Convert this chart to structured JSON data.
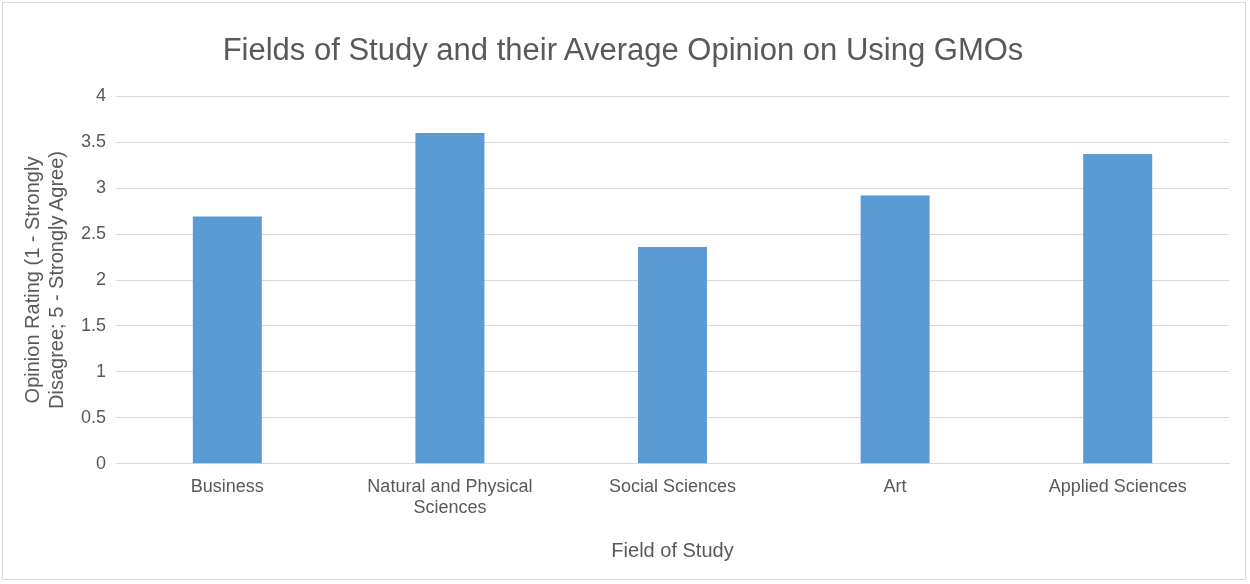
{
  "chart_data": {
    "type": "bar",
    "title": "Fields of Study and their Average Opinion on Using GMOs",
    "xlabel": "Field of Study",
    "ylabel": "Opinion Rating (1 - Strongly Disagree; 5 - Strongly Agree)",
    "categories": [
      "Business",
      "Natural and Physical Sciences",
      "Social Sciences",
      "Art",
      "Applied Sciences"
    ],
    "values": [
      2.69,
      3.6,
      2.36,
      2.92,
      3.37
    ],
    "color": "#5b9bd5",
    "ylim": [
      0,
      4
    ],
    "yticks": [
      0,
      0.5,
      1,
      1.5,
      2,
      2.5,
      3,
      3.5,
      4
    ],
    "grid": "y",
    "legend": false
  }
}
